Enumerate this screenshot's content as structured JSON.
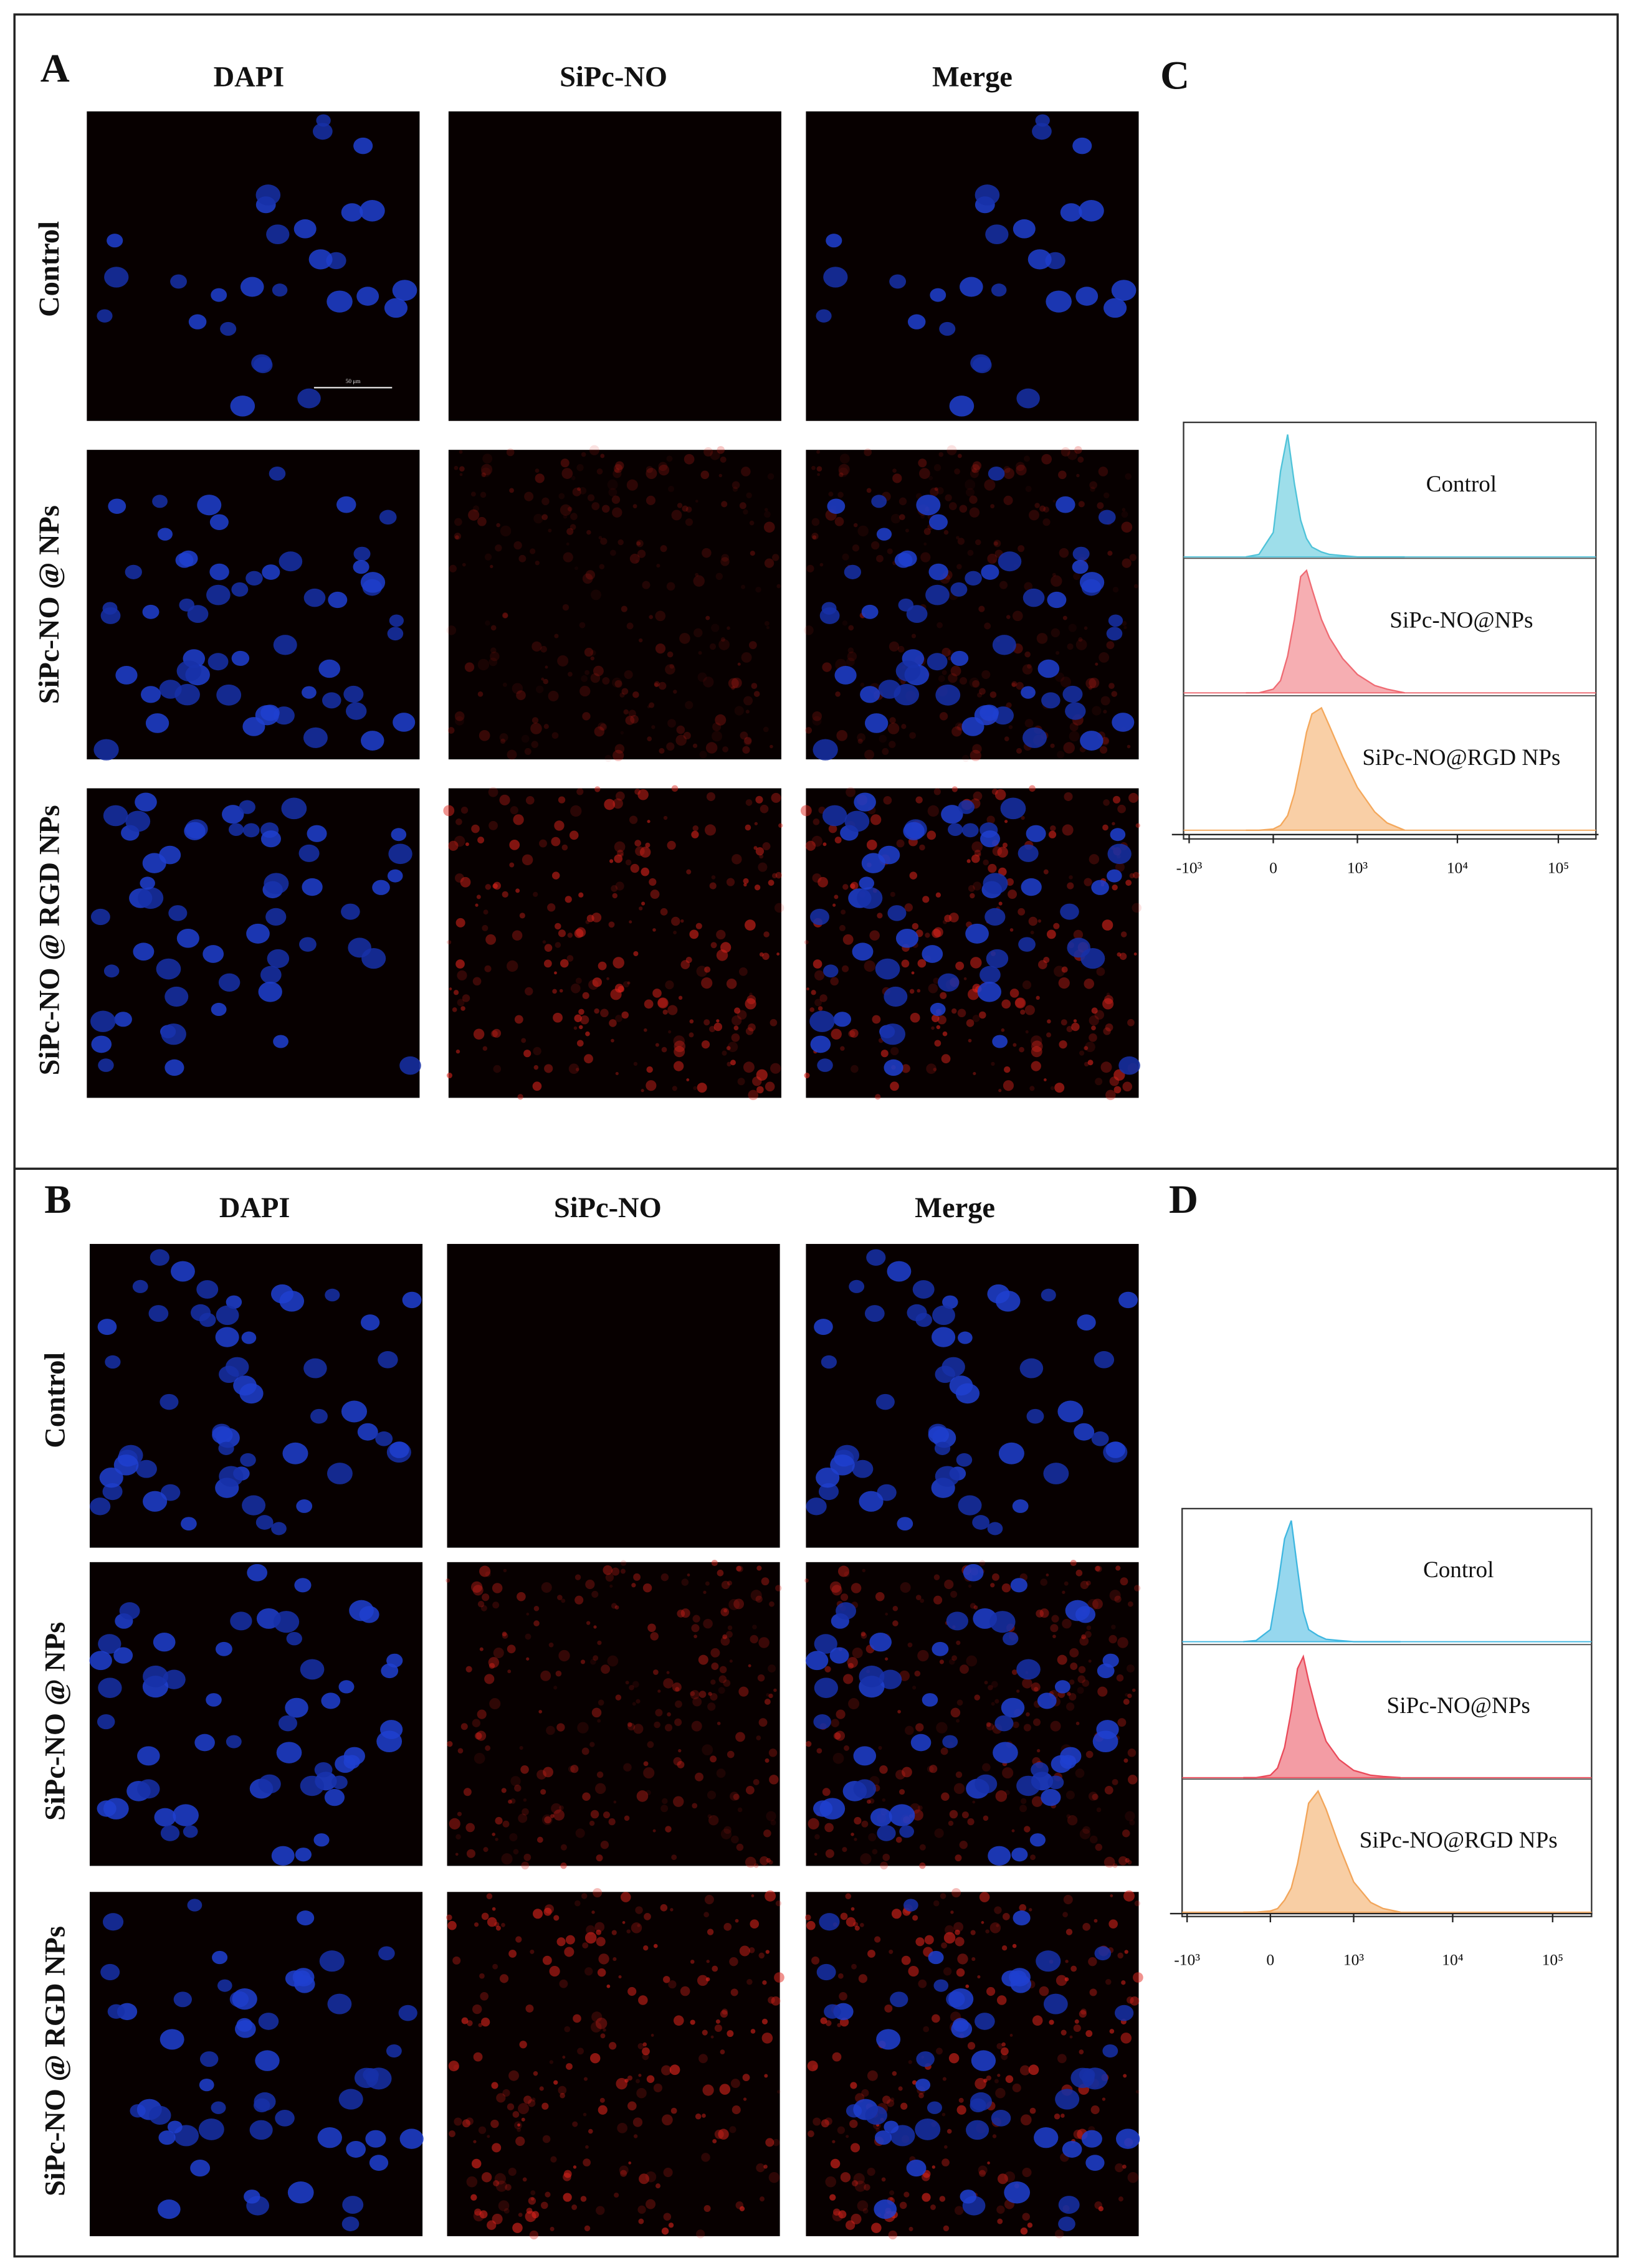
{
  "panels": [
    {
      "letter": "A",
      "columns": [
        "DAPI",
        "SiPc-NO",
        "Merge"
      ],
      "rows": [
        "Control",
        "SiPc-NO @ NPs",
        "SiPc-NO @ RGD NPs"
      ],
      "scale_bar": "50 μm"
    },
    {
      "letter": "B",
      "columns": [
        "DAPI",
        "SiPc-NO",
        "Merge"
      ],
      "rows": [
        "Control",
        "SiPc-NO @ NPs",
        "SiPc-NO @ RGD NPs"
      ]
    }
  ],
  "flow": [
    {
      "letter": "C",
      "type": "histogram",
      "xlim": [
        -1500,
        250000
      ],
      "xticks": [
        {
          "value": -1000,
          "label": "-10³"
        },
        0,
        {
          "value": 1000,
          "label": "10³"
        },
        {
          "value": 10000,
          "label": "10⁴"
        },
        {
          "value": 100000,
          "label": "10⁵"
        }
      ],
      "ylim": [
        0,
        100
      ],
      "x": [
        -200,
        -100,
        0,
        50,
        100,
        150,
        200,
        250,
        300,
        400,
        500,
        700,
        1000,
        1500,
        2000,
        3000
      ],
      "series": [
        {
          "name": "Control",
          "color": "#4fc3d9",
          "values": [
            0,
            2,
            20,
            70,
            100,
            60,
            30,
            15,
            8,
            4,
            2,
            1,
            0,
            0,
            0,
            0
          ]
        },
        {
          "name": "SiPc-NO@NPs",
          "color": "#ef6b73",
          "values": [
            0,
            0,
            3,
            10,
            30,
            60,
            95,
            100,
            85,
            60,
            45,
            28,
            15,
            6,
            3,
            0
          ]
        },
        {
          "name": "SiPc-NO@RGD NPs",
          "color": "#f4a85c",
          "values": [
            0,
            0,
            1,
            4,
            12,
            30,
            55,
            80,
            95,
            100,
            85,
            60,
            35,
            15,
            6,
            0
          ]
        }
      ]
    },
    {
      "letter": "D",
      "type": "histogram",
      "xlim": [
        -1500,
        250000
      ],
      "xticks": [
        {
          "value": -1000,
          "label": "-10³"
        },
        0,
        {
          "value": 1000,
          "label": "10³"
        },
        {
          "value": 10000,
          "label": "10⁴"
        },
        {
          "value": 100000,
          "label": "10⁵"
        }
      ],
      "ylim": [
        0,
        100
      ],
      "x": [
        -200,
        -100,
        0,
        50,
        100,
        150,
        200,
        250,
        300,
        400,
        500,
        700,
        1000,
        1500,
        2000,
        3000
      ],
      "series": [
        {
          "name": "Control",
          "color": "#3fb7e0",
          "values": [
            0,
            1,
            10,
            45,
            85,
            100,
            60,
            25,
            10,
            5,
            2,
            1,
            0,
            0,
            0,
            0
          ]
        },
        {
          "name": "SiPc-NO@NPs",
          "color": "#ea4a5a",
          "values": [
            0,
            0,
            2,
            8,
            25,
            55,
            90,
            100,
            80,
            50,
            30,
            15,
            6,
            2,
            1,
            0
          ]
        },
        {
          "name": "SiPc-NO@RGD NPs",
          "color": "#f2a55a",
          "values": [
            0,
            0,
            1,
            3,
            10,
            20,
            40,
            65,
            90,
            100,
            85,
            55,
            25,
            8,
            3,
            0
          ]
        }
      ]
    }
  ]
}
